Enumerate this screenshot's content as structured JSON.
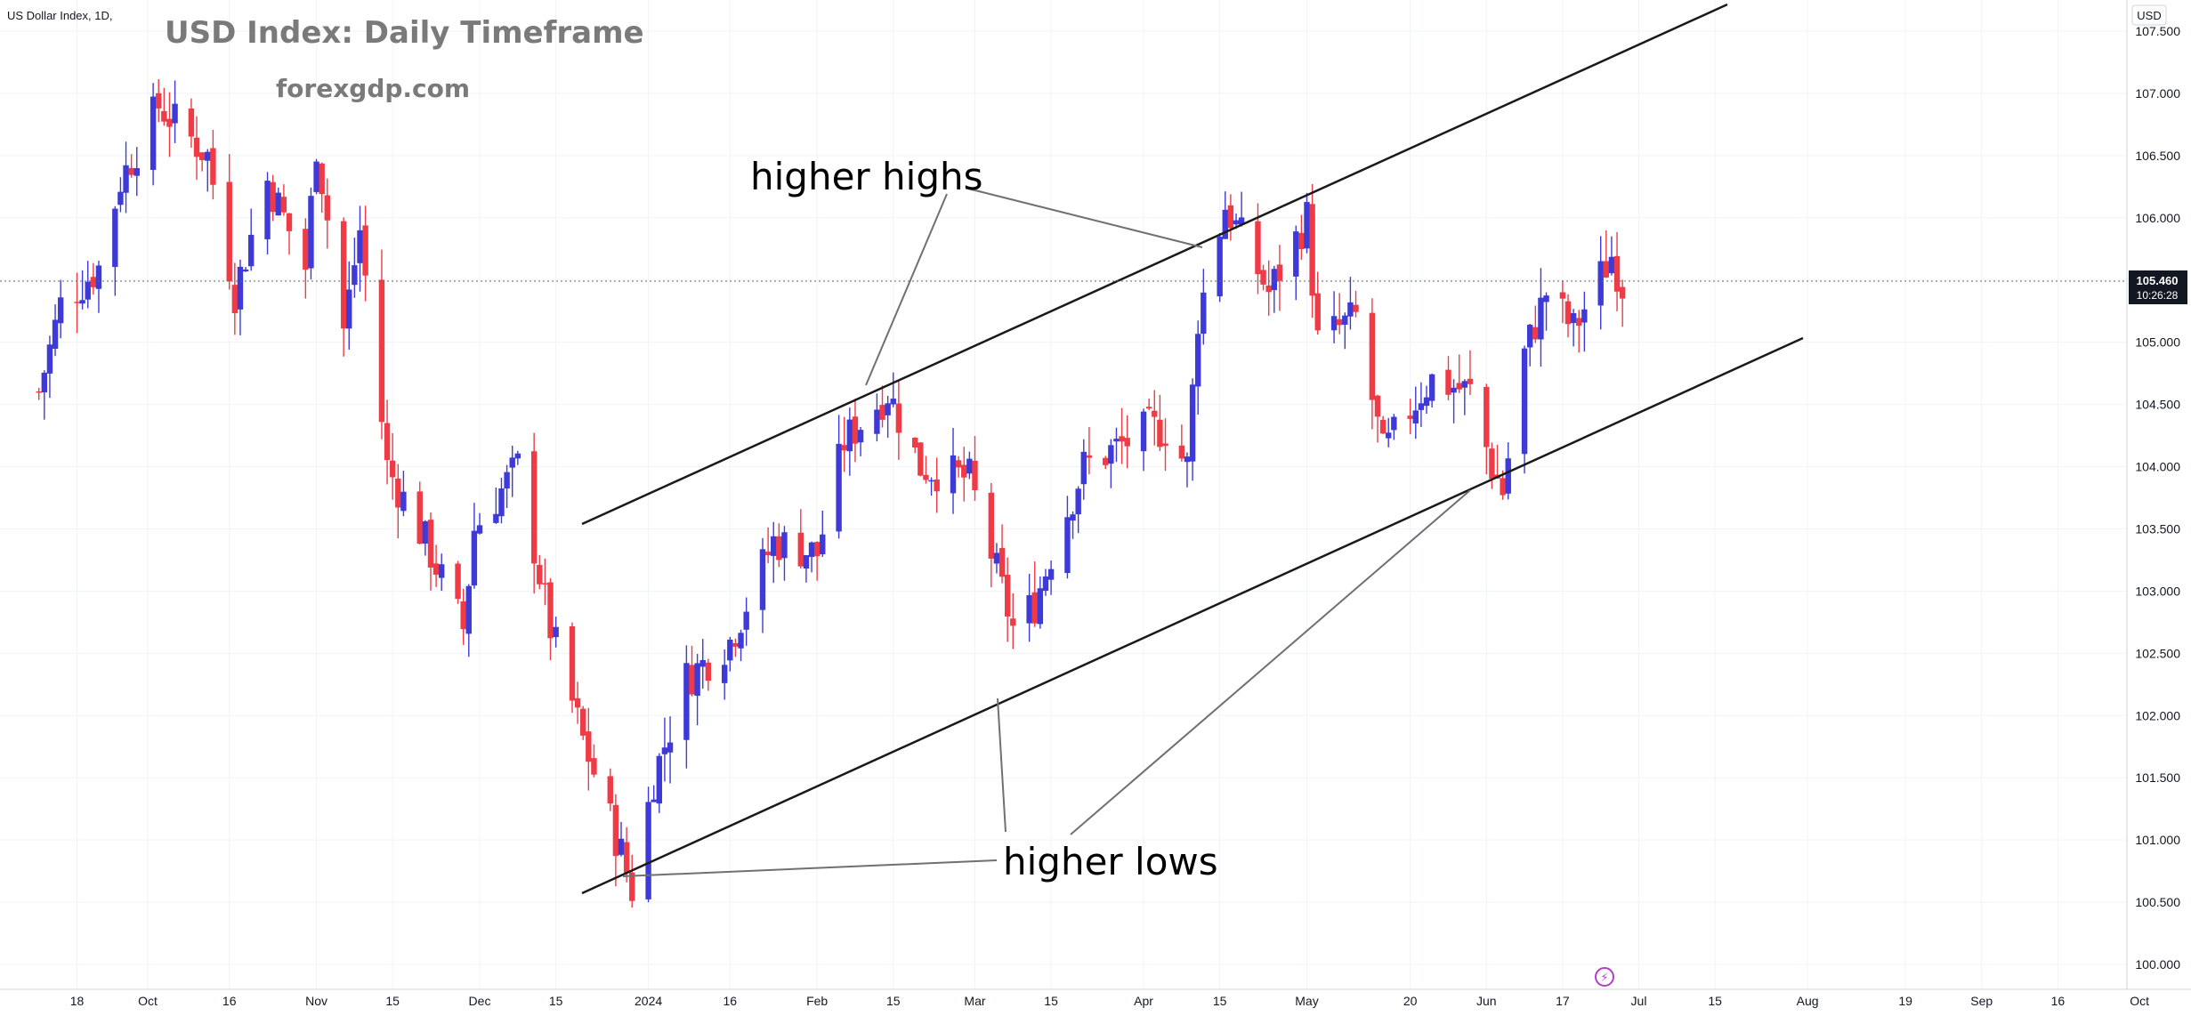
{
  "symbol_info": "US Dollar Index, 1D,",
  "title": "USD Index: Daily Timeframe",
  "watermark": "forexgdp.com",
  "currency_label": "USD",
  "price_tag": {
    "price": "105.460",
    "countdown": "10:26:28"
  },
  "annotations": {
    "higher_highs": "higher highs",
    "higher_lows": "higher lows"
  },
  "colors": {
    "up": "#3d3ad8",
    "down": "#ef3b46",
    "line": "#1a1a1a",
    "pointer": "#707070",
    "grid": "#f0f3fa",
    "border": "#cfd3dc",
    "price_tag_bg": "#131722"
  },
  "chart_data": {
    "type": "candlestick",
    "title": "USD Index: Daily Timeframe",
    "y_range": [
      99.8,
      107.75
    ],
    "y_ticks": [
      "100.000",
      "100.500",
      "101.000",
      "101.500",
      "102.000",
      "102.500",
      "103.000",
      "103.500",
      "104.000",
      "104.500",
      "105.000",
      "105.500",
      "106.000",
      "106.500",
      "107.000",
      "107.500"
    ],
    "x_ticks": [
      {
        "date": "2023-09-18",
        "label": "18"
      },
      {
        "date": "2023-10-01",
        "label": "Oct"
      },
      {
        "date": "2023-10-16",
        "label": "16"
      },
      {
        "date": "2023-11-01",
        "label": "Nov"
      },
      {
        "date": "2023-11-15",
        "label": "15"
      },
      {
        "date": "2023-12-01",
        "label": "Dec"
      },
      {
        "date": "2023-12-15",
        "label": "15"
      },
      {
        "date": "2024-01-01",
        "label": "2024"
      },
      {
        "date": "2024-01-16",
        "label": "16"
      },
      {
        "date": "2024-02-01",
        "label": "Feb"
      },
      {
        "date": "2024-02-15",
        "label": "15"
      },
      {
        "date": "2024-03-01",
        "label": "Mar"
      },
      {
        "date": "2024-03-15",
        "label": "15"
      },
      {
        "date": "2024-04-01",
        "label": "Apr"
      },
      {
        "date": "2024-04-15",
        "label": "15"
      },
      {
        "date": "2024-05-01",
        "label": "May"
      },
      {
        "date": "2024-05-20",
        "label": "20"
      },
      {
        "date": "2024-06-03",
        "label": "Jun"
      },
      {
        "date": "2024-06-17",
        "label": "17"
      },
      {
        "date": "2024-07-01",
        "label": "Jul"
      },
      {
        "date": "2024-07-15",
        "label": "15"
      },
      {
        "date": "2024-08-01",
        "label": "Aug"
      },
      {
        "date": "2024-08-19",
        "label": "19"
      },
      {
        "date": "2024-09-02",
        "label": "Sep"
      },
      {
        "date": "2024-09-16",
        "label": "16"
      },
      {
        "date": "2024-10-01",
        "label": "Oct"
      }
    ],
    "anchors": [
      {
        "date": "2023-09-11",
        "close": 104.6
      },
      {
        "date": "2023-09-15",
        "close": 105.3
      },
      {
        "date": "2023-09-22",
        "close": 105.6
      },
      {
        "date": "2023-09-26",
        "close": 106.3
      },
      {
        "date": "2023-10-03",
        "close": 106.9
      },
      {
        "date": "2023-10-12",
        "close": 106.5
      },
      {
        "date": "2023-10-17",
        "close": 105.4
      },
      {
        "date": "2023-10-23",
        "close": 106.3
      },
      {
        "date": "2023-10-30",
        "close": 105.6
      },
      {
        "date": "2023-11-01",
        "close": 106.6
      },
      {
        "date": "2023-11-06",
        "close": 105.1
      },
      {
        "date": "2023-11-09",
        "close": 105.9
      },
      {
        "date": "2023-11-14",
        "close": 104.0
      },
      {
        "date": "2023-11-21",
        "close": 103.4
      },
      {
        "date": "2023-11-28",
        "close": 102.7
      },
      {
        "date": "2023-11-30",
        "close": 103.5
      },
      {
        "date": "2023-12-08",
        "close": 104.0
      },
      {
        "date": "2023-12-14",
        "close": 102.7
      },
      {
        "date": "2023-12-20",
        "close": 101.8
      },
      {
        "date": "2023-12-27",
        "close": 100.9
      },
      {
        "date": "2023-12-29",
        "close": 100.6
      },
      {
        "date": "2024-01-02",
        "close": 101.5
      },
      {
        "date": "2024-01-08",
        "close": 102.3
      },
      {
        "date": "2024-01-16",
        "close": 102.6
      },
      {
        "date": "2024-01-24",
        "close": 103.4
      },
      {
        "date": "2024-02-01",
        "close": 103.3
      },
      {
        "date": "2024-02-06",
        "close": 104.2
      },
      {
        "date": "2024-02-14",
        "close": 104.6
      },
      {
        "date": "2024-02-20",
        "close": 104.0
      },
      {
        "date": "2024-02-29",
        "close": 103.9
      },
      {
        "date": "2024-03-08",
        "close": 102.7
      },
      {
        "date": "2024-03-12",
        "close": 102.9
      },
      {
        "date": "2024-03-15",
        "close": 103.3
      },
      {
        "date": "2024-03-21",
        "close": 104.0
      },
      {
        "date": "2024-04-02",
        "close": 104.3
      },
      {
        "date": "2024-04-05",
        "close": 104.3
      },
      {
        "date": "2024-04-09",
        "close": 104.0
      },
      {
        "date": "2024-04-11",
        "close": 105.2
      },
      {
        "date": "2024-04-16",
        "close": 106.1
      },
      {
        "date": "2024-04-24",
        "close": 105.4
      },
      {
        "date": "2024-05-01",
        "close": 106.0
      },
      {
        "date": "2024-05-03",
        "close": 105.0
      },
      {
        "date": "2024-05-10",
        "close": 105.2
      },
      {
        "date": "2024-05-15",
        "close": 104.1
      },
      {
        "date": "2024-05-22",
        "close": 104.6
      },
      {
        "date": "2024-05-24",
        "close": 104.7
      },
      {
        "date": "2024-05-31",
        "close": 104.6
      },
      {
        "date": "2024-06-04",
        "close": 104.0
      },
      {
        "date": "2024-06-06",
        "close": 103.8
      },
      {
        "date": "2024-06-10",
        "close": 104.9
      },
      {
        "date": "2024-06-14",
        "close": 105.4
      },
      {
        "date": "2024-06-19",
        "close": 105.1
      },
      {
        "date": "2024-06-26",
        "close": 105.7
      },
      {
        "date": "2024-06-28",
        "close": 105.46
      }
    ]
  }
}
